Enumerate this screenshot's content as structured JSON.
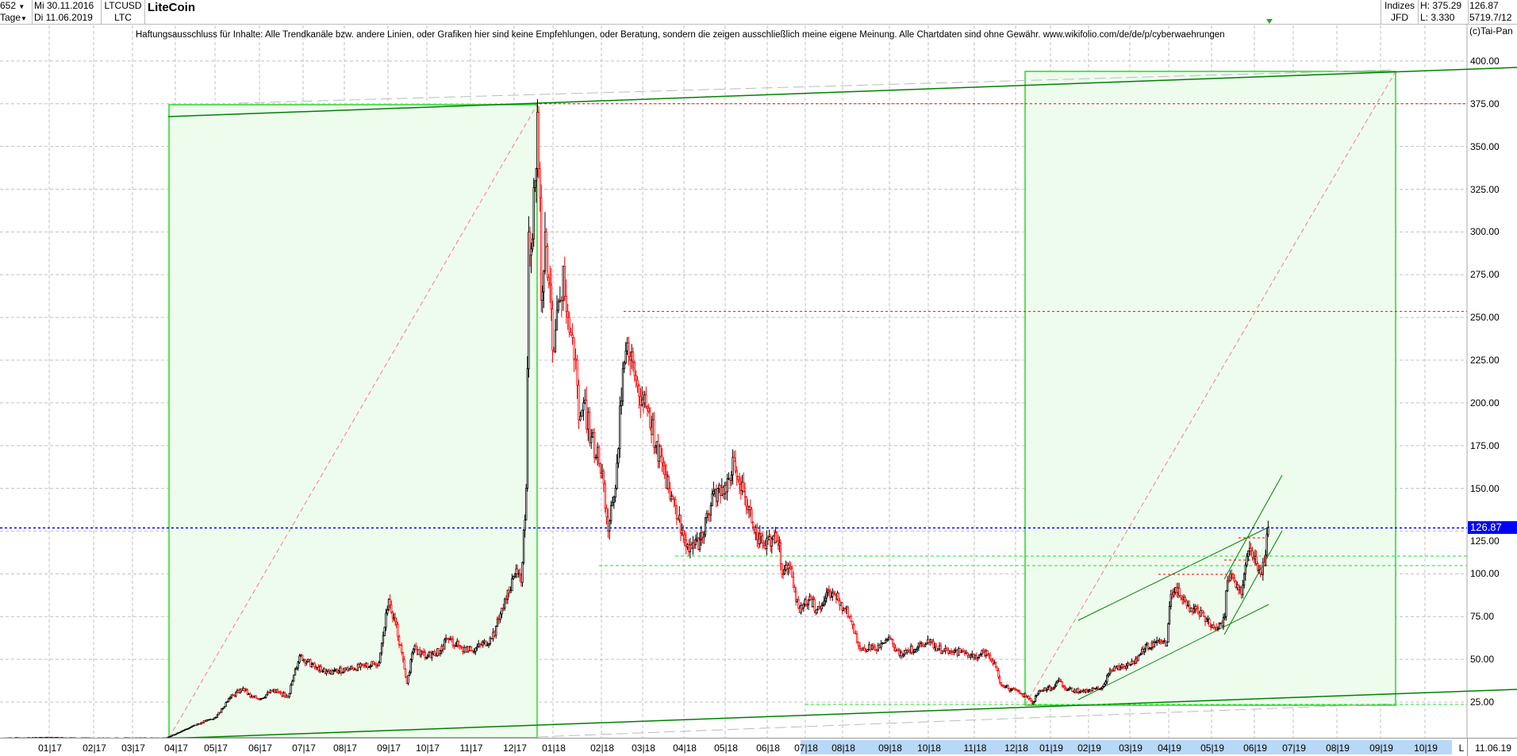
{
  "header": {
    "bars_count": "652",
    "period": "Tage",
    "date_from": "Mi 30.11.2016",
    "date_to": "Di 11.06.2019",
    "symbol": "LTCUSD",
    "symbol_short": "LTC",
    "title": "LiteCoin",
    "group": "Indizes",
    "source": "JFD",
    "high": "H: 375.29",
    "low": "L: 3.330",
    "last": "126.87",
    "extra": "5719.7/12",
    "dropdown_icon": "triangle-down-icon"
  },
  "disclaimer": "Haftungsausschluss für Inhalte: Alle Trendkanäle bzw. andere Linien, oder Grafiken hier sind keine Empfehlungen, oder Beratung, sondern die zeigen ausschließlich meine eigene Meinung. Alle Chartdaten sind ohne Gewähr.  www.wikifolio.com/de/de/p/cyberwaehrungen",
  "copyright": "(c)Tai-Pan",
  "footer": {
    "scale_mode": "L",
    "end_date": "11.06.19"
  },
  "colors": {
    "up": "#000000",
    "down": "#ff0000",
    "box_fill": "#eefcee",
    "box_border": "#22dd22",
    "trend": "#008000",
    "current": "#0000ff",
    "resistance": "#ff0000",
    "support": "#22dd22"
  },
  "chart_data": {
    "type": "candlestick",
    "title": "LiteCoin",
    "ylim": [
      3.33,
      400
    ],
    "y_ticks": [
      "400.00",
      "375.00",
      "350.00",
      "325.00",
      "300.00",
      "275.00",
      "250.00",
      "225.00",
      "200.00",
      "175.00",
      "150.00",
      "125.00",
      "100.00",
      "75.00",
      "50.00",
      "25.00"
    ],
    "x_ticks": [
      "01|17",
      "02|17",
      "03|17",
      "04|17",
      "05|17",
      "06|17",
      "07|17",
      "08|17",
      "09|17",
      "10|17",
      "11|17",
      "12|17",
      "01|18",
      "02|18",
      "03|18",
      "04|18",
      "05|18",
      "06|18",
      "07|18",
      "08|18",
      "09|18",
      "10|18",
      "11|18",
      "12|18",
      "01|19",
      "02|19",
      "03|19",
      "04|19",
      "05|19",
      "06|19",
      "07|19",
      "08|19",
      "09|19",
      "10|19"
    ],
    "grid": true,
    "current_price": 126.87,
    "current_label": "126.87",
    "levels": {
      "resistance": [
        375,
        253.5,
        99.5
      ],
      "support": [
        110,
        105,
        25
      ]
    },
    "closes": [
      [
        "2016-11-30",
        4.0
      ],
      [
        "2017-01-01",
        4.3
      ],
      [
        "2017-02-01",
        3.9
      ],
      [
        "2017-03-01",
        4.0
      ],
      [
        "2017-03-25",
        4.0
      ],
      [
        "2017-04-05",
        8
      ],
      [
        "2017-04-20",
        13
      ],
      [
        "2017-05-01",
        16
      ],
      [
        "2017-05-10",
        27
      ],
      [
        "2017-05-20",
        33
      ],
      [
        "2017-05-25",
        28
      ],
      [
        "2017-06-01",
        27
      ],
      [
        "2017-06-10",
        32
      ],
      [
        "2017-06-20",
        28
      ],
      [
        "2017-06-28",
        52
      ],
      [
        "2017-07-10",
        45
      ],
      [
        "2017-07-20",
        42
      ],
      [
        "2017-08-01",
        44
      ],
      [
        "2017-08-15",
        46
      ],
      [
        "2017-08-25",
        48
      ],
      [
        "2017-09-01",
        85
      ],
      [
        "2017-09-06",
        72
      ],
      [
        "2017-09-12",
        50
      ],
      [
        "2017-09-15",
        36
      ],
      [
        "2017-09-20",
        56
      ],
      [
        "2017-10-01",
        52
      ],
      [
        "2017-10-10",
        55
      ],
      [
        "2017-10-15",
        62
      ],
      [
        "2017-10-25",
        57
      ],
      [
        "2017-11-01",
        55
      ],
      [
        "2017-11-15",
        62
      ],
      [
        "2017-11-25",
        85
      ],
      [
        "2017-12-01",
        100
      ],
      [
        "2017-12-06",
        95
      ],
      [
        "2017-12-10",
        150
      ],
      [
        "2017-12-11",
        220
      ],
      [
        "2017-12-12",
        300
      ],
      [
        "2017-12-14",
        290
      ],
      [
        "2017-12-17",
        330
      ],
      [
        "2017-12-19",
        370
      ],
      [
        "2017-12-21",
        320
      ],
      [
        "2017-12-22",
        260
      ],
      [
        "2017-12-25",
        300
      ],
      [
        "2017-12-28",
        270
      ],
      [
        "2018-01-01",
        230
      ],
      [
        "2018-01-05",
        260
      ],
      [
        "2018-01-07",
        280
      ],
      [
        "2018-01-10",
        250
      ],
      [
        "2018-01-15",
        225
      ],
      [
        "2018-01-17",
        190
      ],
      [
        "2018-01-20",
        200
      ],
      [
        "2018-01-25",
        180
      ],
      [
        "2018-02-01",
        160
      ],
      [
        "2018-02-05",
        125
      ],
      [
        "2018-02-07",
        140
      ],
      [
        "2018-02-10",
        150
      ],
      [
        "2018-02-15",
        220
      ],
      [
        "2018-02-18",
        235
      ],
      [
        "2018-02-20",
        225
      ],
      [
        "2018-02-25",
        210
      ],
      [
        "2018-03-01",
        200
      ],
      [
        "2018-03-05",
        195
      ],
      [
        "2018-03-10",
        175
      ],
      [
        "2018-03-15",
        165
      ],
      [
        "2018-03-20",
        150
      ],
      [
        "2018-03-25",
        140
      ],
      [
        "2018-04-01",
        120
      ],
      [
        "2018-04-06",
        115
      ],
      [
        "2018-04-12",
        120
      ],
      [
        "2018-04-18",
        135
      ],
      [
        "2018-04-25",
        150
      ],
      [
        "2018-05-01",
        148
      ],
      [
        "2018-05-06",
        168
      ],
      [
        "2018-05-10",
        155
      ],
      [
        "2018-05-15",
        145
      ],
      [
        "2018-05-20",
        130
      ],
      [
        "2018-05-28",
        118
      ],
      [
        "2018-06-01",
        120
      ],
      [
        "2018-06-05",
        122
      ],
      [
        "2018-06-10",
        118
      ],
      [
        "2018-06-12",
        100
      ],
      [
        "2018-06-15",
        105
      ],
      [
        "2018-06-20",
        98
      ],
      [
        "2018-06-25",
        80
      ],
      [
        "2018-07-01",
        82
      ],
      [
        "2018-07-05",
        85
      ],
      [
        "2018-07-10",
        79
      ],
      [
        "2018-07-15",
        82
      ],
      [
        "2018-07-20",
        90
      ],
      [
        "2018-07-25",
        88
      ],
      [
        "2018-08-01",
        80
      ],
      [
        "2018-08-05",
        75
      ],
      [
        "2018-08-10",
        60
      ],
      [
        "2018-08-15",
        55
      ],
      [
        "2018-08-20",
        58
      ],
      [
        "2018-08-25",
        57
      ],
      [
        "2018-09-01",
        62
      ],
      [
        "2018-09-05",
        55
      ],
      [
        "2018-09-10",
        52
      ],
      [
        "2018-09-15",
        55
      ],
      [
        "2018-09-22",
        57
      ],
      [
        "2018-10-01",
        60
      ],
      [
        "2018-10-10",
        55
      ],
      [
        "2018-10-15",
        55
      ],
      [
        "2018-10-22",
        54
      ],
      [
        "2018-11-01",
        52
      ],
      [
        "2018-11-05",
        53
      ],
      [
        "2018-11-10",
        53
      ],
      [
        "2018-11-15",
        48
      ],
      [
        "2018-11-20",
        35
      ],
      [
        "2018-11-25",
        33
      ],
      [
        "2018-12-01",
        32
      ],
      [
        "2018-12-05",
        30
      ],
      [
        "2018-12-12",
        27
      ],
      [
        "2018-12-15",
        24
      ],
      [
        "2018-12-20",
        30
      ],
      [
        "2018-12-25",
        32
      ],
      [
        "2019-01-01",
        33
      ],
      [
        "2019-01-07",
        38
      ],
      [
        "2019-01-12",
        33
      ],
      [
        "2019-01-20",
        32
      ],
      [
        "2019-01-30",
        31
      ],
      [
        "2019-02-05",
        33
      ],
      [
        "2019-02-10",
        34
      ],
      [
        "2019-02-15",
        44
      ],
      [
        "2019-02-22",
        45
      ],
      [
        "2019-03-01",
        47
      ],
      [
        "2019-03-07",
        52
      ],
      [
        "2019-03-12",
        56
      ],
      [
        "2019-03-20",
        60
      ],
      [
        "2019-03-30",
        60
      ],
      [
        "2019-04-02",
        88
      ],
      [
        "2019-04-05",
        92
      ],
      [
        "2019-04-10",
        85
      ],
      [
        "2019-04-15",
        78
      ],
      [
        "2019-04-20",
        80
      ],
      [
        "2019-04-25",
        75
      ],
      [
        "2019-05-01",
        70
      ],
      [
        "2019-05-05",
        68
      ],
      [
        "2019-05-10",
        75
      ],
      [
        "2019-05-11",
        90
      ],
      [
        "2019-05-14",
        100
      ],
      [
        "2019-05-18",
        92
      ],
      [
        "2019-05-22",
        88
      ],
      [
        "2019-05-25",
        105
      ],
      [
        "2019-05-28",
        115
      ],
      [
        "2019-06-01",
        110
      ],
      [
        "2019-06-05",
        100
      ],
      [
        "2019-06-08",
        105
      ],
      [
        "2019-06-11",
        126.87
      ]
    ]
  }
}
